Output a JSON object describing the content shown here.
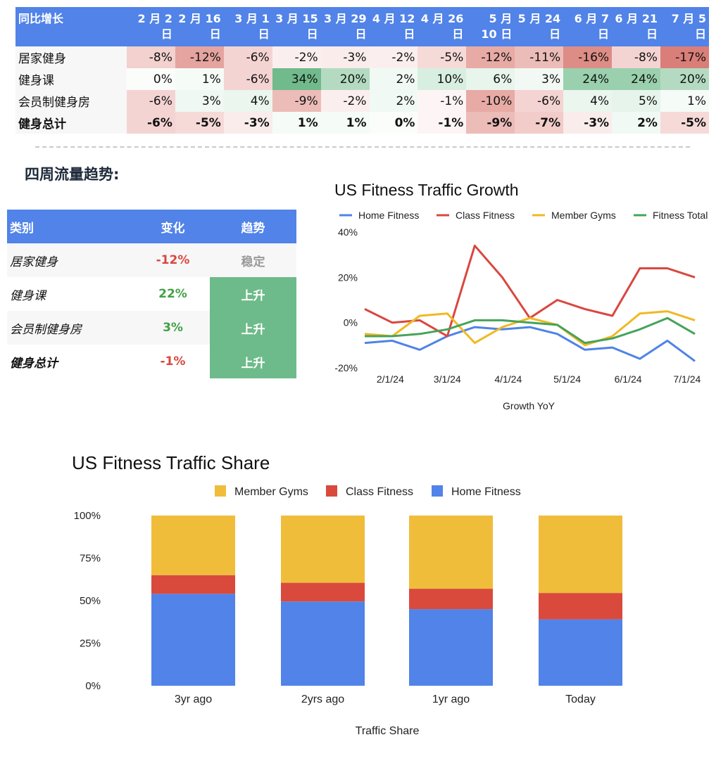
{
  "yoy_table": {
    "corner": "同比增长",
    "columns": [
      [
        "2 月 2",
        "日"
      ],
      [
        "2 月 16",
        "日"
      ],
      [
        "3 月 1",
        "日"
      ],
      [
        "3 月 15",
        "日"
      ],
      [
        "3 月 29",
        "日"
      ],
      [
        "4 月 12",
        "日"
      ],
      [
        "4 月 26",
        "日"
      ],
      [
        "5 月",
        "10 日"
      ],
      [
        "5 月 24",
        "日"
      ],
      [
        "6 月 7",
        "日"
      ],
      [
        "6 月 21",
        "日"
      ],
      [
        "7 月 5",
        "日"
      ]
    ],
    "rows": [
      {
        "label": "居家健身",
        "total": false,
        "values": [
          "-8%",
          "-12%",
          "-6%",
          "-2%",
          "-3%",
          "-2%",
          "-5%",
          "-12%",
          "-11%",
          "-16%",
          "-8%",
          "-17%"
        ],
        "colors": [
          "#f2d1cf",
          "#e5a49f",
          "#f4d4d2",
          "#fbeeee",
          "#f9ecea",
          "#fbeeee",
          "#f6dad8",
          "#e8aaa5",
          "#ecbcb8",
          "#dd8d86",
          "#f4d4d2",
          "#d97e78"
        ]
      },
      {
        "label": "健身课",
        "total": false,
        "values": [
          "0%",
          "1%",
          "-6%",
          "34%",
          "20%",
          "2%",
          "10%",
          "6%",
          "3%",
          "24%",
          "24%",
          "20%"
        ],
        "colors": [
          "#fbfdfb",
          "#f5fbf7",
          "#f4d4d2",
          "#71ba8c",
          "#b4dbc2",
          "#f1f9f4",
          "#d8eee0",
          "#e8f5ec",
          "#f2f9f4",
          "#9ad0ad",
          "#9ad0ad",
          "#b4dbc2"
        ]
      },
      {
        "label": "会员制健身房",
        "total": false,
        "values": [
          "-6%",
          "3%",
          "4%",
          "-9%",
          "-2%",
          "2%",
          "-1%",
          "-10%",
          "-6%",
          "4%",
          "5%",
          "1%"
        ],
        "colors": [
          "#f4d4d2",
          "#eff8f2",
          "#eaf6ee",
          "#ecbcb8",
          "#fbeeee",
          "#f1f9f4",
          "#fdf5f5",
          "#e8aaa5",
          "#f4d4d2",
          "#eaf6ee",
          "#e6f4eb",
          "#f5fbf7"
        ]
      },
      {
        "label": "健身总计",
        "total": true,
        "values": [
          "-6%",
          "-5%",
          "-3%",
          "1%",
          "1%",
          "0%",
          "-1%",
          "-9%",
          "-7%",
          "-3%",
          "2%",
          "-5%"
        ],
        "colors": [
          "#f4d4d2",
          "#f6dad8",
          "#f9ecea",
          "#f5fbf7",
          "#f5fbf7",
          "#fbfdfb",
          "#fdf5f5",
          "#ecbcb8",
          "#f1ccc9",
          "#f9ecea",
          "#f1f9f4",
          "#f6dad8"
        ]
      }
    ]
  },
  "trend_section": {
    "heading": "四周流量趋势:",
    "headers": [
      "类别",
      "变化",
      "趋势"
    ],
    "rows": [
      {
        "category": "居家健身",
        "change": "-12%",
        "trend": "稳定",
        "change_color": "#d9473f",
        "trend_color": "#9a9a9a",
        "trend_bg": "#f7f7f7",
        "total": false
      },
      {
        "category": "健身课",
        "change": "22%",
        "trend": "上升",
        "change_color": "#43a047",
        "trend_color": "#ffffff",
        "trend_bg": "#6dbb8a",
        "total": false
      },
      {
        "category": "会员制健身房",
        "change": "3%",
        "trend": "上升",
        "change_color": "#43a047",
        "trend_color": "#ffffff",
        "trend_bg": "#6dbb8a",
        "total": false
      },
      {
        "category": "健身总计",
        "change": "-1%",
        "trend": "上升",
        "change_color": "#d9473f",
        "trend_color": "#ffffff",
        "trend_bg": "#6dbb8a",
        "total": true
      }
    ]
  },
  "chart_data": [
    {
      "type": "line",
      "title": "US Fitness Traffic Growth",
      "xlabel": "Growth YoY",
      "ylabel": "",
      "ylim": [
        -20,
        40
      ],
      "yticks": [
        -20,
        0,
        20,
        40
      ],
      "ytick_labels": [
        "-20%",
        "0%",
        "20%",
        "40%"
      ],
      "xticks": [
        "2/1/24",
        "3/1/24",
        "4/1/24",
        "5/1/24",
        "6/1/24",
        "7/1/24"
      ],
      "xtick_values": [
        "2024-02-01",
        "2024-03-01",
        "2024-04-01",
        "2024-05-01",
        "2024-06-01",
        "2024-07-01"
      ],
      "x": [
        "2024-01-19",
        "2024-02-02",
        "2024-02-16",
        "2024-03-01",
        "2024-03-15",
        "2024-03-29",
        "2024-04-12",
        "2024-04-26",
        "2024-05-10",
        "2024-05-24",
        "2024-06-07",
        "2024-06-21",
        "2024-07-05"
      ],
      "legend_position": "top",
      "grid": false,
      "series": [
        {
          "name": "Home Fitness",
          "color": "#4f83e6",
          "values": [
            -9,
            -8,
            -12,
            -6,
            -2,
            -3,
            -2,
            -5,
            -12,
            -11,
            -16,
            -8,
            -17
          ]
        },
        {
          "name": "Class Fitness",
          "color": "#d9473f",
          "values": [
            6,
            0,
            1,
            -6,
            34,
            20,
            2,
            10,
            6,
            3,
            24,
            24,
            20
          ]
        },
        {
          "name": "Member Gyms",
          "color": "#f0b924",
          "values": [
            -5,
            -6,
            3,
            4,
            -9,
            -2,
            2,
            -1,
            -10,
            -6,
            4,
            5,
            1
          ]
        },
        {
          "name": "Fitness Total",
          "color": "#46a35a",
          "values": [
            -6,
            -6,
            -5,
            -3,
            1,
            1,
            0,
            -1,
            -9,
            -7,
            -3,
            2,
            -5
          ]
        }
      ]
    },
    {
      "type": "bar",
      "stacked": true,
      "title": "US Fitness Traffic Share",
      "xlabel": "Traffic Share",
      "ylabel": "",
      "ylim": [
        0,
        100
      ],
      "yticks": [
        0,
        25,
        50,
        75,
        100
      ],
      "ytick_labels": [
        "0%",
        "25%",
        "50%",
        "75%",
        "100%"
      ],
      "categories": [
        "3yr ago",
        "2yrs ago",
        "1yr ago",
        "Today"
      ],
      "legend_position": "top",
      "grid": false,
      "legend_order": [
        "Member Gyms",
        "Class Fitness",
        "Home Fitness"
      ],
      "series": [
        {
          "name": "Home Fitness",
          "color": "#5183e8",
          "values": [
            54,
            49.5,
            45,
            39
          ]
        },
        {
          "name": "Class Fitness",
          "color": "#d94a3d",
          "values": [
            11,
            11,
            12,
            15.5
          ]
        },
        {
          "name": "Member Gyms",
          "color": "#f0bd3b",
          "values": [
            35,
            39.5,
            43,
            45.5
          ]
        }
      ]
    }
  ]
}
